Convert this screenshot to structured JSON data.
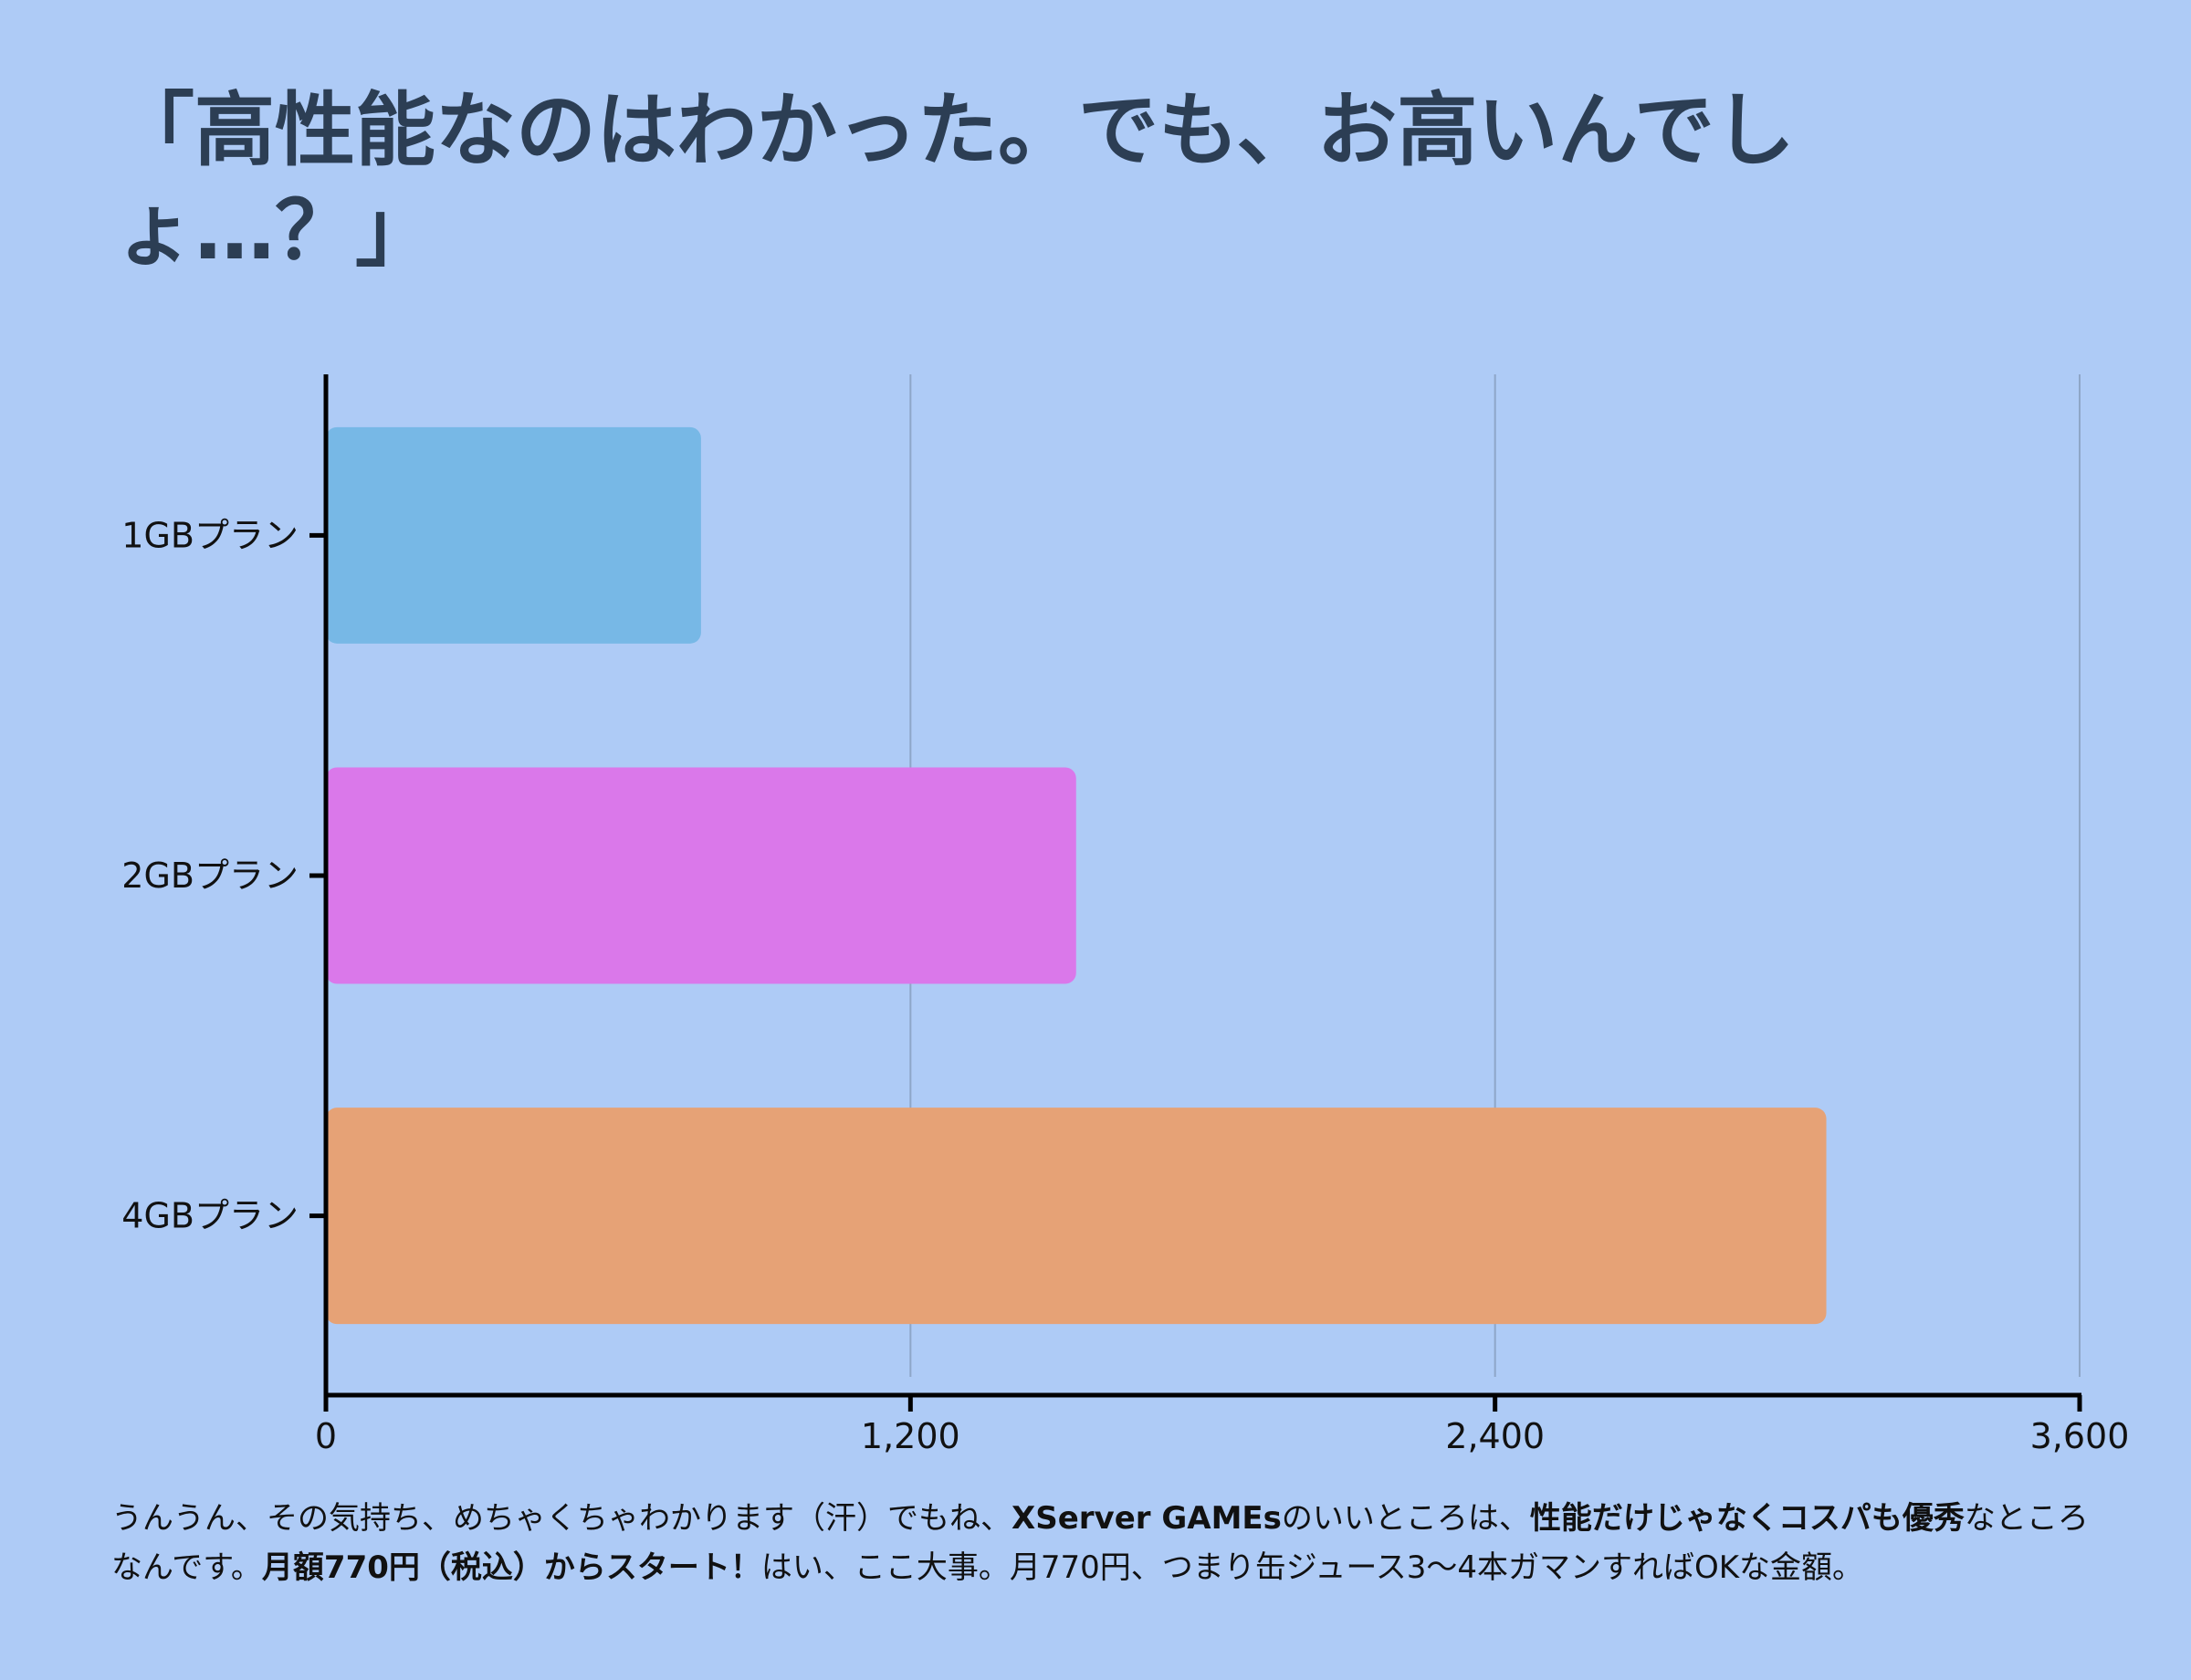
{
  "title": "「高性能なのはわかった。でも、お高いんでしょ…？」",
  "chart_data": {
    "type": "bar",
    "orientation": "horizontal",
    "title": "「高性能なのはわかった。でも、お高いんでしょ…？」",
    "categories": [
      "1GBプラン",
      "2GBプラン",
      "4GBプラン"
    ],
    "values": [
      770,
      1540,
      3080
    ],
    "colors": [
      "#77b8e6",
      "#da78ea",
      "#e6a276"
    ],
    "xlim": [
      0,
      3600
    ],
    "xticks": [
      0,
      1200,
      2400,
      3600
    ],
    "xtick_labels": [
      "0",
      "1,200",
      "2,400",
      "3,600"
    ],
    "xlabel": "",
    "ylabel": "",
    "grid": "vertical"
  },
  "caption": {
    "line1": [
      {
        "text": "うんうん、その気持ち、めちゃくちゃわかります（汗）でもね、",
        "bold": false
      },
      {
        "text": "XServer GAMEs",
        "bold": true
      },
      {
        "text": "のいいところは、",
        "bold": false
      },
      {
        "text": "性能だけじゃなくコスパも優秀",
        "bold": true
      },
      {
        "text": "なところ",
        "bold": false
      }
    ],
    "line2": [
      {
        "text": "なんです。",
        "bold": false
      },
      {
        "text": "月額770円（税込）からスタート！",
        "bold": true
      },
      {
        "text": "はい、ここ大事。月770円、つまり缶ジュース3〜4本ガマンすればOKな金額。",
        "bold": false
      }
    ]
  },
  "colors": {
    "background": "#aecbf6",
    "title": "#2c3e54",
    "axis": "#000000",
    "grid": "#8ea6c8"
  }
}
